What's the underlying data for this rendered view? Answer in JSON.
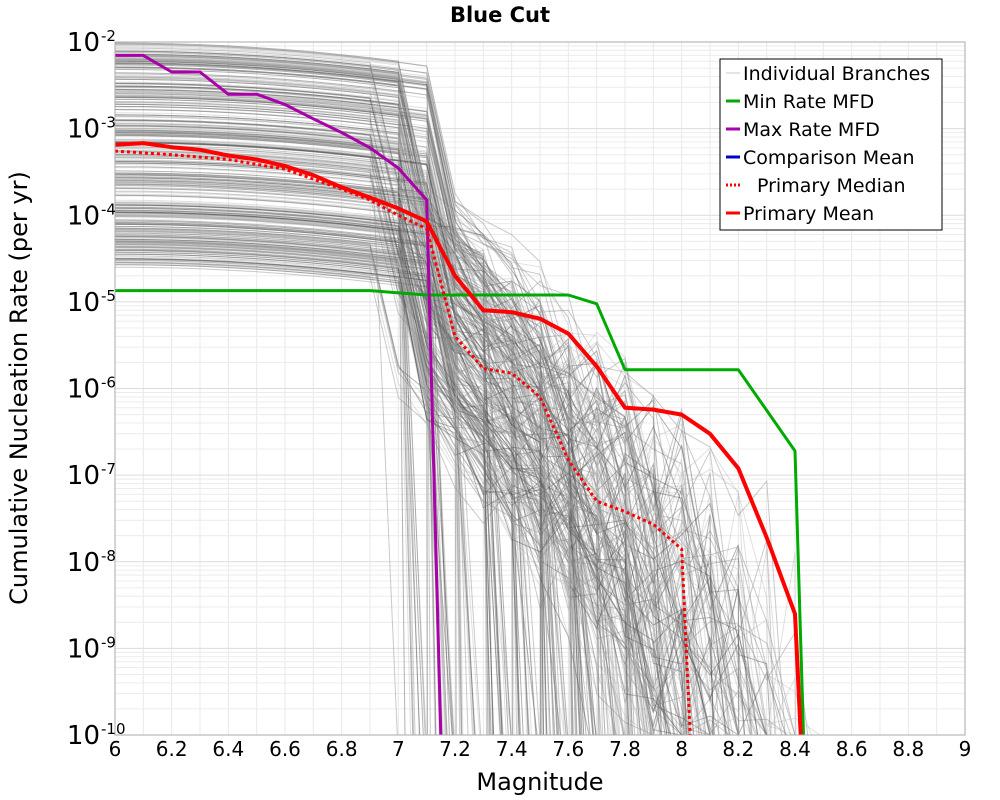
{
  "chart_data": {
    "type": "line",
    "title": "Blue Cut",
    "xlabel": "Magnitude",
    "ylabel": "Cumulative Nucleation Rate (per yr)",
    "xlim": [
      6,
      9
    ],
    "ylim": [
      1e-10,
      0.01
    ],
    "yscale": "log",
    "grid": true,
    "legend_position": "top-right",
    "x_ticks": [
      "6",
      "6.2",
      "6.4",
      "6.6",
      "6.8",
      "7",
      "7.2",
      "7.4",
      "7.6",
      "7.8",
      "8",
      "8.2",
      "8.4",
      "8.6",
      "8.8",
      "9"
    ],
    "y_ticks": [
      {
        "base": "10",
        "exp": "-2",
        "value": 0.01
      },
      {
        "base": "10",
        "exp": "-3",
        "value": 0.001
      },
      {
        "base": "10",
        "exp": "-4",
        "value": 0.0001
      },
      {
        "base": "10",
        "exp": "-5",
        "value": 1e-05
      },
      {
        "base": "10",
        "exp": "-6",
        "value": 1e-06
      },
      {
        "base": "10",
        "exp": "-7",
        "value": 1e-07
      },
      {
        "base": "10",
        "exp": "-8",
        "value": 1e-08
      },
      {
        "base": "10",
        "exp": "-9",
        "value": 1e-09
      },
      {
        "base": "10",
        "exp": "-10",
        "value": 1e-10
      }
    ],
    "legend": [
      {
        "label": "Individual Branches",
        "color": "#c8c8c8",
        "style": "solid"
      },
      {
        "label": "Min Rate MFD",
        "color": "#00aa00",
        "style": "solid"
      },
      {
        "label": "Max Rate MFD",
        "color": "#aa00aa",
        "style": "solid"
      },
      {
        "label": "Comparison Mean",
        "color": "#0000cc",
        "style": "solid"
      },
      {
        "label": "Primary Median",
        "color": "#ff0000",
        "style": "dotted"
      },
      {
        "label": "Primary Mean",
        "color": "#ff0000",
        "style": "solid"
      }
    ],
    "series": [
      {
        "name": "Min Rate MFD",
        "color": "#00aa00",
        "width": 3,
        "dash": "",
        "x": [
          6.0,
          6.9,
          7.1,
          7.6,
          7.7,
          7.8,
          8.2,
          8.4,
          8.43
        ],
        "y": [
          1.35e-05,
          1.35e-05,
          1.2e-05,
          1.2e-05,
          9.5e-06,
          1.65e-06,
          1.65e-06,
          1.9e-07,
          1e-10
        ]
      },
      {
        "name": "Max Rate MFD",
        "color": "#aa00aa",
        "width": 3,
        "dash": "",
        "x": [
          6.0,
          6.1,
          6.2,
          6.3,
          6.4,
          6.5,
          6.6,
          6.7,
          6.8,
          6.9,
          7.0,
          7.1,
          7.15
        ],
        "y": [
          0.007,
          0.007,
          0.0045,
          0.0045,
          0.0025,
          0.0025,
          0.0019,
          0.0013,
          0.0009,
          0.0006,
          0.00035,
          0.00015,
          1e-10
        ]
      },
      {
        "name": "Primary Mean",
        "color": "#ff0000",
        "width": 4,
        "dash": "",
        "x": [
          6.0,
          6.1,
          6.2,
          6.3,
          6.4,
          6.5,
          6.6,
          6.7,
          6.8,
          6.9,
          7.0,
          7.1,
          7.2,
          7.3,
          7.4,
          7.5,
          7.6,
          7.7,
          7.8,
          7.9,
          8.0,
          8.1,
          8.2,
          8.3,
          8.4,
          8.42
        ],
        "y": [
          0.00065,
          0.00068,
          0.00061,
          0.00057,
          0.00049,
          0.00044,
          0.00037,
          0.00029,
          0.00021,
          0.00016,
          0.00012,
          8.5e-05,
          2e-05,
          8e-06,
          7.6e-06,
          6.4e-06,
          4.3e-06,
          1.8e-06,
          6e-07,
          5.7e-07,
          5e-07,
          3e-07,
          1.2e-07,
          1.9e-08,
          2.5e-09,
          1e-10
        ]
      },
      {
        "name": "Primary Median",
        "color": "#ff0000",
        "width": 3,
        "dash": "3,3",
        "x": [
          6.0,
          6.2,
          6.4,
          6.6,
          6.8,
          6.9,
          7.0,
          7.1,
          7.2,
          7.3,
          7.4,
          7.5,
          7.6,
          7.7,
          7.8,
          7.9,
          8.0,
          8.03
        ],
        "y": [
          0.00055,
          0.0005,
          0.00044,
          0.00034,
          0.0002,
          0.00015,
          0.0001,
          7e-05,
          4e-06,
          1.7e-06,
          1.5e-06,
          8e-07,
          1.5e-07,
          5e-08,
          3.8e-08,
          2.7e-08,
          1.4e-08,
          1e-10
        ]
      }
    ]
  }
}
